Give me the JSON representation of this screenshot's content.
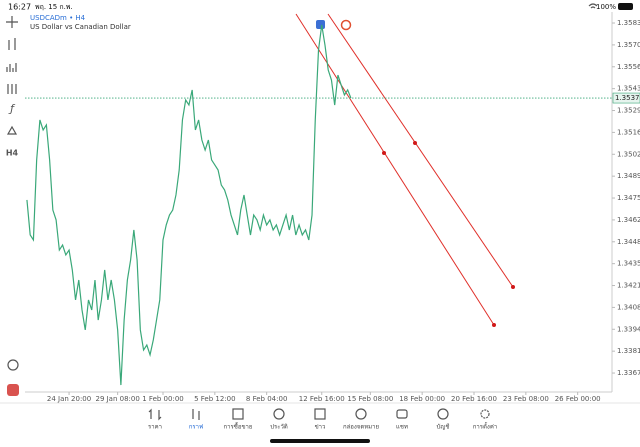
{
  "status_bar": {
    "time": "16:27",
    "date": "พฤ. 15 ก.พ.",
    "battery": "100%"
  },
  "toolbar": {
    "timeframe": "H4"
  },
  "chart_data": {
    "type": "line",
    "title": "USDCADm • H4",
    "subtitle": "US Dollar vs Canadian Dollar",
    "color": "#3aa879",
    "x": [
      0,
      1,
      2,
      3,
      4,
      5,
      6,
      7,
      8,
      9,
      10,
      11,
      12,
      13,
      14,
      15,
      16,
      17,
      18,
      19,
      20,
      21,
      22,
      23,
      24,
      25,
      26,
      27,
      28,
      29,
      30,
      31,
      32,
      33,
      34,
      35,
      36,
      37,
      38,
      39,
      40,
      41,
      42,
      43,
      44,
      45,
      46,
      47,
      48,
      49,
      50,
      51,
      52,
      53,
      54,
      55,
      56,
      57,
      58,
      59,
      60,
      61,
      62,
      63,
      64,
      65,
      66,
      67,
      68,
      69,
      70,
      71,
      72,
      73,
      74,
      75,
      76,
      77,
      78,
      79,
      80,
      81,
      82,
      83,
      84,
      85,
      86,
      87,
      88,
      89,
      90,
      91,
      92,
      93,
      94,
      95,
      96,
      97,
      98,
      99,
      100
    ],
    "values": [
      1.34743,
      1.34527,
      1.34496,
      1.3499,
      1.35237,
      1.35175,
      1.35206,
      1.3499,
      1.34681,
      1.3462,
      1.34434,
      1.34465,
      1.34404,
      1.34434,
      1.34311,
      1.34126,
      1.34249,
      1.34064,
      1.33941,
      1.34126,
      1.34064,
      1.34249,
      1.34002,
      1.34126,
      1.34311,
      1.34126,
      1.34249,
      1.34126,
      1.33941,
      1.33601,
      1.34002,
      1.34249,
      1.34373,
      1.34558,
      1.34373,
      1.33941,
      1.33817,
      1.33848,
      1.33787,
      1.33879,
      1.34002,
      1.34126,
      1.34496,
      1.34589,
      1.3465,
      1.34681,
      1.34774,
      1.34928,
      1.35237,
      1.3536,
      1.35329,
      1.35422,
      1.35175,
      1.35237,
      1.35113,
      1.35051,
      1.35113,
      1.3499,
      1.34959,
      1.34928,
      1.34835,
      1.34805,
      1.34743,
      1.3465,
      1.34589,
      1.34527,
      1.34681,
      1.34774,
      1.3465,
      1.34527,
      1.3465,
      1.3462,
      1.34558,
      1.3465,
      1.34589,
      1.3462,
      1.34558,
      1.34589,
      1.34527,
      1.34589,
      1.3465,
      1.34558,
      1.3465,
      1.34527,
      1.34589,
      1.34527,
      1.34558,
      1.34496,
      1.3465,
      1.35237,
      1.35668,
      1.35823,
      1.35699,
      1.35545,
      1.35483,
      1.35329,
      1.35514,
      1.35452,
      1.35391,
      1.35422,
      1.35372
    ],
    "current_price": 1.35372,
    "xlim": [
      -0.6,
      180.6
    ],
    "xticks": [
      {
        "value": 13,
        "label": "24 Jan 20:00"
      },
      {
        "value": 28,
        "label": "29 Jan 08:00"
      },
      {
        "value": 42,
        "label": "1 Feb 00:00"
      },
      {
        "value": 58,
        "label": "5 Feb 12:00"
      },
      {
        "value": 74,
        "label": "8 Feb 04:00"
      },
      {
        "value": 91,
        "label": "12 Feb 16:00"
      },
      {
        "value": 106,
        "label": "15 Feb 08:00"
      },
      {
        "value": 122,
        "label": "18 Feb 00:00"
      },
      {
        "value": 138,
        "label": "20 Feb 16:00"
      },
      {
        "value": 154,
        "label": "23 Feb 08:00"
      },
      {
        "value": 170,
        "label": "26 Feb 00:00"
      }
    ],
    "ylim": [
      1.33558,
      1.35903
    ],
    "yticks": [
      1.35835,
      {
        "value": 1.357,
        "label": "1.35700"
      },
      1.35565,
      {
        "value": 1.3543,
        "label": "1.35430"
      },
      1.35295,
      {
        "value": 1.3516,
        "label": "1.35160"
      },
      1.35025,
      {
        "value": 1.3489,
        "label": "1.34890"
      },
      1.34755,
      {
        "value": 1.3462,
        "label": "1.34620"
      },
      1.34485,
      {
        "value": 1.3435,
        "label": "1.34350"
      },
      1.34215,
      {
        "value": 1.3408,
        "label": "1.34080"
      },
      1.33945,
      {
        "value": 1.3381,
        "label": "1.33810"
      },
      1.33675
    ],
    "grid": false
  },
  "tabs": [
    {
      "label": "ราคา",
      "active": false
    },
    {
      "label": "กราฟ",
      "active": true
    },
    {
      "label": "การซื้อขาย",
      "active": false
    },
    {
      "label": "ประวัติ",
      "active": false
    },
    {
      "label": "ข่าว",
      "active": false
    },
    {
      "label": "กล่องจดหมาย",
      "active": false
    },
    {
      "label": "แชท",
      "active": false
    },
    {
      "label": "บัญชี",
      "active": false
    },
    {
      "label": "การตั้งค่า",
      "active": false
    }
  ]
}
